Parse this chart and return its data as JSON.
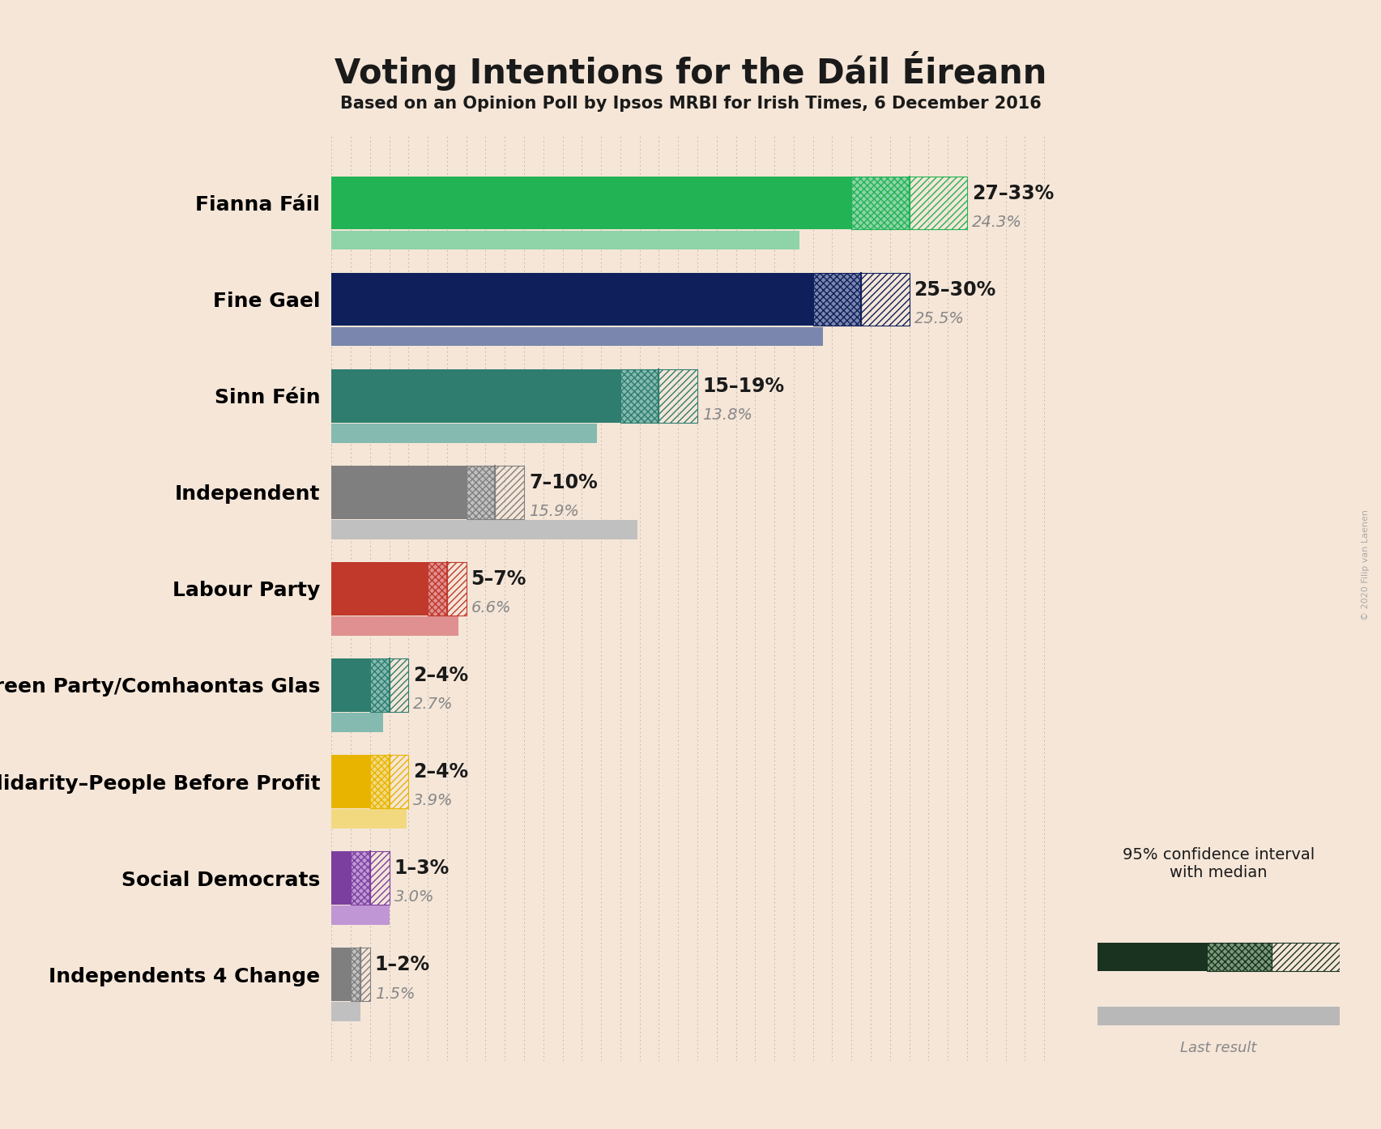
{
  "title": "Voting Intentions for the Dáil Éireann",
  "subtitle": "Based on an Opinion Poll by Ipsos MRBI for Irish Times, 6 December 2016",
  "background_color": "#f5e6d8",
  "parties": [
    "Fianna Fáil",
    "Fine Gael",
    "Sinn Féin",
    "Independent",
    "Labour Party",
    "Green Party/Comhaontas Glas",
    "Solidarity–People Before Profit",
    "Social Democrats",
    "Independents 4 Change"
  ],
  "ci_low": [
    27,
    25,
    15,
    7,
    5,
    2,
    2,
    1,
    1
  ],
  "ci_high": [
    33,
    30,
    19,
    10,
    7,
    4,
    4,
    3,
    2
  ],
  "median": [
    30,
    27.5,
    17,
    8.5,
    6,
    3,
    3,
    2,
    1.5
  ],
  "last_result": [
    24.3,
    25.5,
    13.8,
    15.9,
    6.6,
    2.7,
    3.9,
    3.0,
    1.5
  ],
  "labels": [
    "27–33%",
    "25–30%",
    "15–19%",
    "7–10%",
    "5–7%",
    "2–4%",
    "2–4%",
    "1–3%",
    "1–2%"
  ],
  "last_result_labels": [
    "24.3%",
    "25.5%",
    "13.8%",
    "15.9%",
    "6.6%",
    "2.7%",
    "3.9%",
    "3.0%",
    "1.5%"
  ],
  "bar_colors": [
    "#22b355",
    "#0e1f5b",
    "#2e7d6e",
    "#7f7f7f",
    "#c0392b",
    "#2e7d6e",
    "#e8b400",
    "#7b3fa0",
    "#7f7f7f"
  ],
  "last_result_alpha_colors": [
    "#8ed4a8",
    "#7a86ad",
    "#85bab0",
    "#c0c0c0",
    "#e09090",
    "#85bab0",
    "#f2d980",
    "#c097d4",
    "#c0c0c0"
  ],
  "legend_bar_color": "#1a3320",
  "last_result_color": "#b8b8b8",
  "watermark": "© 2020 Filip van Laenen",
  "xlim_max": 38
}
